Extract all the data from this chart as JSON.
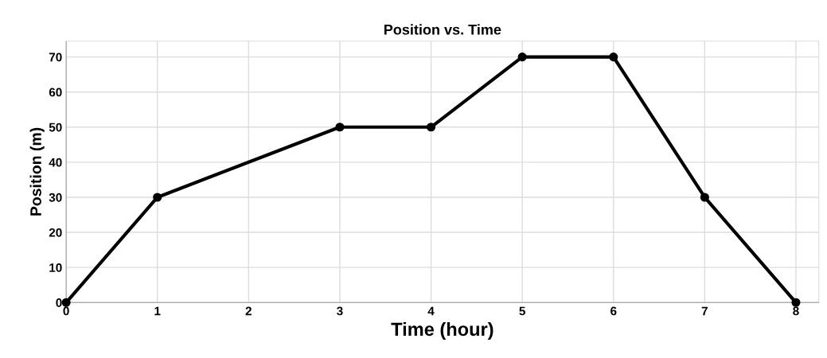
{
  "chart_data": {
    "type": "line",
    "title": "Position vs. Time",
    "xlabel": "Time (hour)",
    "ylabel": "Position (m)",
    "x": [
      0,
      1,
      3,
      4,
      5,
      6,
      7,
      8
    ],
    "series": [
      {
        "color": "#000000",
        "values": [
          0,
          30,
          50,
          50,
          70,
          70,
          30,
          0
        ]
      }
    ],
    "xlim": [
      0,
      8.25
    ],
    "ylim": [
      0,
      74.5
    ],
    "xticks": [
      0,
      1,
      2,
      3,
      4,
      5,
      6,
      7,
      8
    ],
    "yticks": [
      0,
      10,
      20,
      30,
      40,
      50,
      60,
      70
    ],
    "grid": true,
    "marker": "circle",
    "line_style": "solid"
  }
}
